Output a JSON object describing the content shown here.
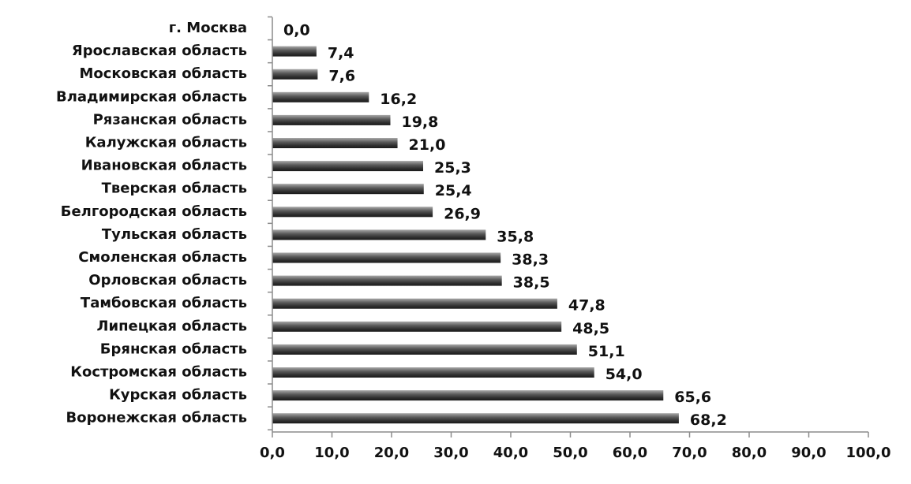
{
  "chart_data": {
    "type": "bar",
    "orientation": "horizontal",
    "title": "",
    "xlabel": "",
    "ylabel": "",
    "categories": [
      "г. Москва",
      "Ярославская  область",
      "Московская  область",
      "Владимирская  область",
      "Рязанская область",
      "Калужская область",
      "Ивановская  область",
      "Тверская область",
      "Белгородская область",
      "Тульская  область",
      "Смоленская область",
      "Орловская область",
      "Тамбовская  область",
      "Липецкая область",
      "Брянская область",
      "Костромская  область",
      "Курская область",
      "Воронежская  область"
    ],
    "values": [
      0.0,
      7.4,
      7.6,
      16.2,
      19.8,
      21.0,
      25.3,
      25.4,
      26.9,
      35.8,
      38.3,
      38.5,
      47.8,
      48.5,
      51.1,
      54.0,
      65.6,
      68.2
    ],
    "value_labels": [
      "0,0",
      "7,4",
      "7,6",
      "16,2",
      "19,8",
      "21,0",
      "25,3",
      "25,4",
      "26,9",
      "35,8",
      "38,3",
      "38,5",
      "47,8",
      "48,5",
      "51,1",
      "54,0",
      "65,6",
      "68,2"
    ],
    "xlim": [
      0,
      100
    ],
    "xticks": [
      0,
      10,
      20,
      30,
      40,
      50,
      60,
      70,
      80,
      90,
      100
    ],
    "xtick_labels": [
      "0,0",
      "10,0",
      "20,0",
      "30,0",
      "40,0",
      "50,0",
      "60,0",
      "70,0",
      "80,0",
      "90,0",
      "100,0"
    ],
    "grid": false,
    "legend": "none",
    "bar_color": "#4a4a4a"
  }
}
